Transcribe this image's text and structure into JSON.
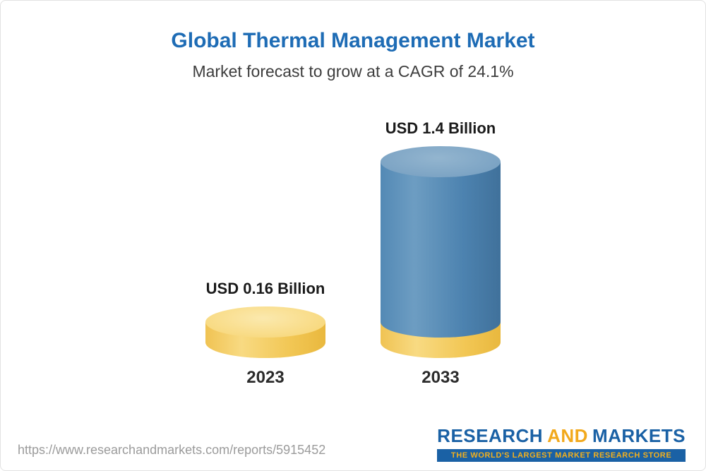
{
  "chart_data": {
    "type": "bar",
    "bar_style": "3d-cylinder",
    "title": "Global Thermal Management Market",
    "subtitle": "Market forecast to grow at a CAGR of 24.1%",
    "cagr_percent": 24.1,
    "categories": [
      "2023",
      "2033"
    ],
    "values": [
      0.16,
      1.4
    ],
    "value_labels": [
      "USD 0.16 Billion",
      "USD 1.4 Billion"
    ],
    "unit": "USD Billion",
    "legend_position": "none",
    "grid": false,
    "colors": {
      "bar_2023": "#f2c755",
      "bar_2033": "#4d83b0",
      "bar_2033_base_band": "#f2c755",
      "title_text": "#1e6cb5",
      "subtitle_text": "#3d3d3d"
    }
  },
  "footer": {
    "url": "https://www.researchandmarkets.com/reports/5915452",
    "logo": {
      "word1": "RESEARCH",
      "word2": "AND",
      "word3": "MARKETS",
      "tagline": "THE WORLD'S LARGEST MARKET RESEARCH STORE",
      "blue": "#1a61a5",
      "gold": "#f2a91c"
    }
  }
}
